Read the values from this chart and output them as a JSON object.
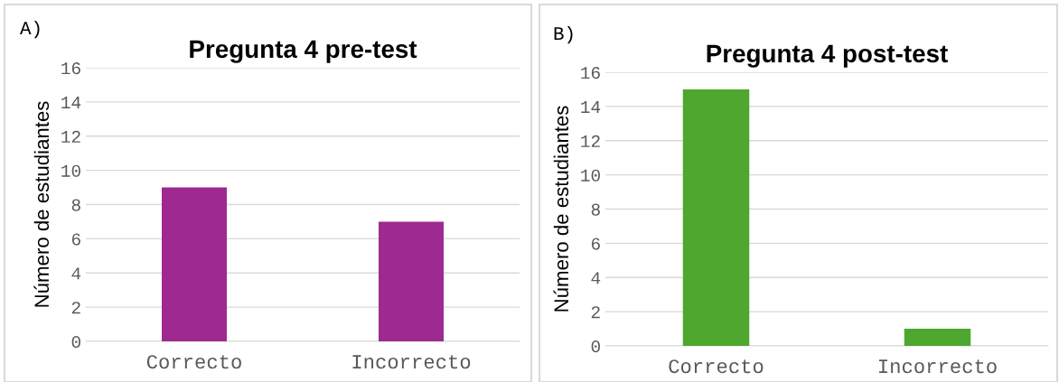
{
  "chart_data": [
    {
      "type": "bar",
      "title": "Pregunta 4 pre-test",
      "ylabel": "Número de estudiantes",
      "annotations": [
        "A)"
      ],
      "categories": [
        "Correcto",
        "Incorrecto"
      ],
      "values": [
        9,
        7
      ],
      "color": "#9e2a91",
      "ylim": [
        0,
        16
      ],
      "yticks": [
        0,
        2,
        4,
        6,
        8,
        10,
        12,
        14,
        16
      ],
      "grid": "y",
      "legend": false
    },
    {
      "type": "bar",
      "title": "Pregunta 4 post-test",
      "ylabel": "Número de estudiantes",
      "annotations": [
        "B)"
      ],
      "categories": [
        "Correcto",
        "Incorrecto"
      ],
      "values": [
        15,
        1
      ],
      "color": "#4ea72e",
      "ylim": [
        0,
        16
      ],
      "yticks": [
        0,
        2,
        4,
        6,
        8,
        10,
        12,
        14,
        16
      ],
      "grid": "y",
      "legend": false
    }
  ]
}
